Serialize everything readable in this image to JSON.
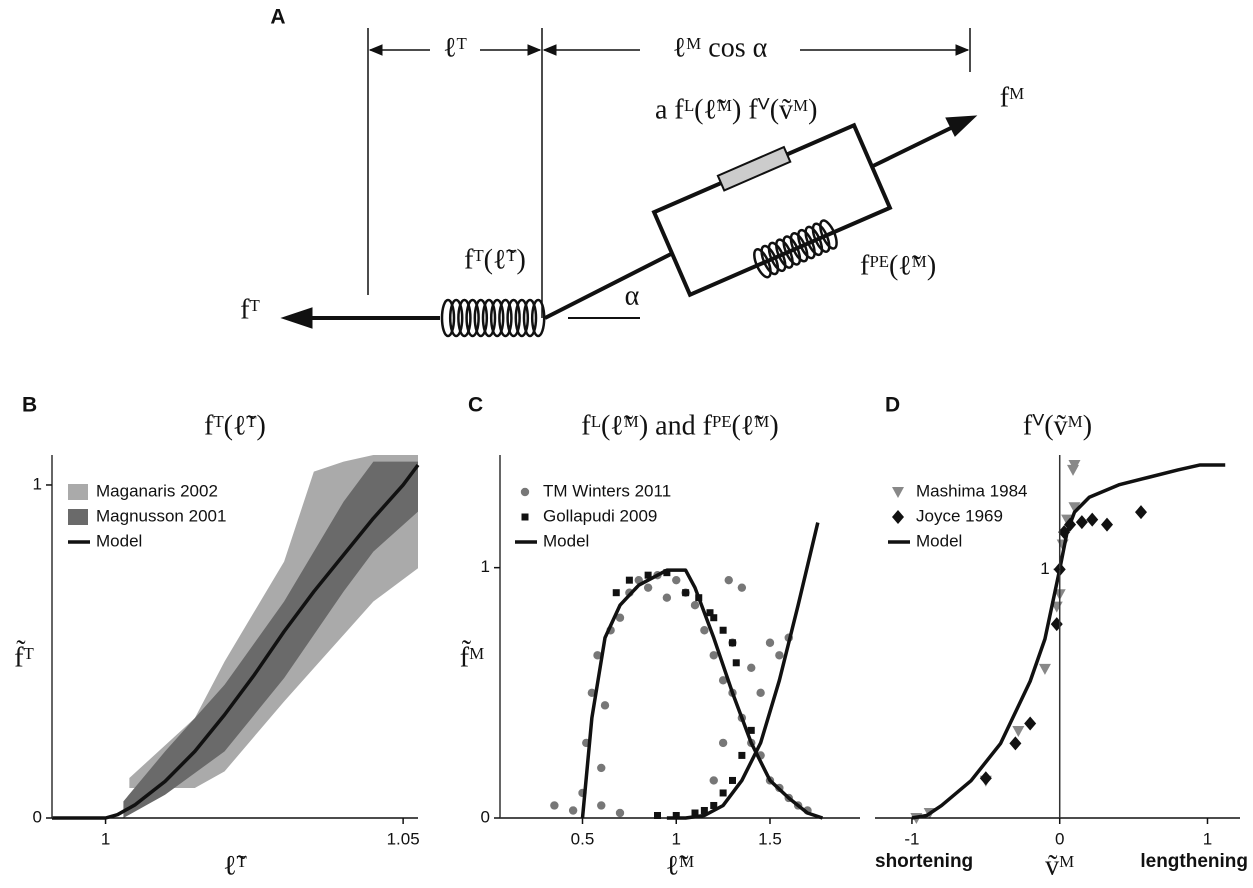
{
  "diagram": {
    "panel_label": "A",
    "tendon_length": "ℓᵀ",
    "fiber_length_projection": "ℓᴹ cos α",
    "muscle_force": "fᴹ",
    "active_force": "a fᴸ(ℓ̃ᴹ) fⱽ(ṽᴹ)",
    "tendon_force_curve": "fᵀ(ℓ̃ᵀ)",
    "passive_force": "fᴾᴱ(ℓ̃ᴹ)",
    "pennation": "α",
    "tendon_force": "fᵀ"
  },
  "chart_data": [
    {
      "type": "line",
      "panel_label": "B",
      "title": "fᵀ(ℓ̃ᵀ)",
      "x_label": "ℓ̃ᵀ",
      "y_label": "f̃ᵀ",
      "xlim": [
        0.991,
        1.0525
      ],
      "ylim": [
        0,
        1.09
      ],
      "xticks": [
        1,
        1.05
      ],
      "yticks": [
        0,
        1
      ],
      "spine": "left",
      "series": [
        {
          "name": "Maganaris 2002",
          "kind": "band",
          "color": "#aaaaaa",
          "x": [
            1.004,
            1.015,
            1.02,
            1.03,
            1.035,
            1.04,
            1.045,
            1.0525
          ],
          "upper": [
            0.12,
            0.3,
            0.47,
            0.77,
            1.04,
            1.07,
            1.09,
            1.09
          ],
          "lower": [
            0.09,
            0.09,
            0.14,
            0.35,
            0.45,
            0.55,
            0.65,
            0.75
          ]
        },
        {
          "name": "Magnusson 2001",
          "kind": "band",
          "color": "#6a6a6a",
          "x": [
            1.003,
            1.01,
            1.02,
            1.03,
            1.04,
            1.045,
            1.0525
          ],
          "upper": [
            0.05,
            0.2,
            0.4,
            0.65,
            0.95,
            1.07,
            1.07
          ],
          "lower": [
            0.0,
            0.07,
            0.2,
            0.42,
            0.68,
            0.8,
            0.92
          ]
        },
        {
          "name": "Model",
          "kind": "line",
          "color": "#111111",
          "x": [
            0.991,
            1.0,
            1.002,
            1.005,
            1.01,
            1.015,
            1.02,
            1.025,
            1.03,
            1.035,
            1.04,
            1.045,
            1.05,
            1.0525
          ],
          "values": [
            0,
            0,
            0.01,
            0.04,
            0.11,
            0.2,
            0.31,
            0.43,
            0.56,
            0.68,
            0.79,
            0.9,
            1.0,
            1.06
          ]
        }
      ]
    },
    {
      "type": "scatter",
      "panel_label": "C",
      "title": "fᴸ(ℓ̃ᴹ) and fᴾᴱ(ℓ̃ᴹ)",
      "x_label": "ℓ̃ᴹ",
      "y_label": "f̃ᴹ",
      "xlim": [
        0.06,
        1.98
      ],
      "ylim": [
        0,
        1.45
      ],
      "xticks": [
        0.5,
        1,
        1.5
      ],
      "yticks": [
        0,
        1
      ],
      "spine": "left",
      "series": [
        {
          "name": "TM Winters 2011",
          "kind": "scatter",
          "marker": "circle",
          "color": "#777777",
          "x": [
            0.5,
            0.52,
            0.55,
            0.58,
            0.6,
            0.62,
            0.65,
            0.7,
            0.75,
            0.8,
            0.85,
            0.9,
            0.95,
            1.0,
            1.05,
            1.1,
            1.15,
            1.2,
            1.25,
            1.3,
            1.35,
            1.4,
            1.45,
            1.5,
            1.55,
            1.6,
            1.65,
            0.35,
            0.45,
            1.4,
            1.5,
            1.55,
            1.6,
            1.3,
            1.45,
            1.2,
            1.25,
            0.6,
            0.7,
            1.7,
            1.28,
            1.35
          ],
          "values": [
            0.1,
            0.3,
            0.5,
            0.65,
            0.2,
            0.45,
            0.75,
            0.8,
            0.9,
            0.95,
            0.92,
            0.97,
            0.88,
            0.95,
            0.9,
            0.85,
            0.75,
            0.65,
            0.55,
            0.5,
            0.4,
            0.3,
            0.25,
            0.15,
            0.12,
            0.08,
            0.05,
            0.05,
            0.03,
            0.6,
            0.7,
            0.65,
            0.72,
            0.7,
            0.5,
            0.15,
            0.3,
            0.05,
            0.02,
            0.03,
            0.95,
            0.92
          ]
        },
        {
          "name": "Gollapudi 2009",
          "kind": "scatter",
          "marker": "square",
          "color": "#111111",
          "x": [
            0.68,
            0.75,
            0.85,
            0.95,
            1.05,
            1.12,
            1.18,
            1.25,
            1.32,
            1.1,
            1.15,
            1.2,
            1.25,
            1.3,
            1.35,
            1.4,
            1.0,
            0.9,
            1.2,
            1.3
          ],
          "values": [
            0.9,
            0.95,
            0.97,
            0.98,
            0.9,
            0.88,
            0.82,
            0.75,
            0.62,
            0.02,
            0.03,
            0.05,
            0.1,
            0.15,
            0.25,
            0.35,
            0.01,
            0.01,
            0.8,
            0.7
          ]
        },
        {
          "name": "Model",
          "kind": "line",
          "color": "#111111",
          "x": [
            0.5,
            0.55,
            0.62,
            0.7,
            0.8,
            0.95,
            1.05,
            1.1,
            1.2,
            1.3,
            1.4,
            1.5,
            1.6,
            1.7,
            1.78,
            null,
            0.95,
            1.05,
            1.15,
            1.25,
            1.35,
            1.45,
            1.55,
            1.65,
            1.755
          ],
          "values": [
            0,
            0.4,
            0.72,
            0.85,
            0.93,
            0.99,
            0.99,
            0.92,
            0.72,
            0.5,
            0.3,
            0.15,
            0.08,
            0.02,
            0,
            null,
            0,
            0,
            0.01,
            0.05,
            0.15,
            0.3,
            0.55,
            0.85,
            1.18
          ]
        }
      ]
    },
    {
      "type": "scatter",
      "panel_label": "D",
      "title": "fⱽ(ṽᴹ)",
      "x_label": "ṽᴹ",
      "x_left_note": "shortening",
      "x_right_note": "lengthening",
      "xlim": [
        -1.25,
        1.22
      ],
      "ylim": [
        0,
        1.46
      ],
      "xticks": [
        -1,
        0,
        1
      ],
      "yticks": [
        1
      ],
      "spine": "zero",
      "series": [
        {
          "name": "Mashima 1984",
          "kind": "scatter",
          "marker": "triangle",
          "color": "#888888",
          "x": [
            -0.97,
            -0.88,
            -0.5,
            -0.28,
            -0.1,
            -0.02,
            0,
            0.02,
            0.05,
            0.1,
            0.09,
            0.1
          ],
          "values": [
            0,
            0.02,
            0.15,
            0.35,
            0.6,
            0.85,
            0.9,
            1.1,
            1.2,
            1.25,
            1.4,
            1.42
          ]
        },
        {
          "name": "Joyce 1969",
          "kind": "scatter",
          "marker": "diamond",
          "color": "#111111",
          "x": [
            -0.3,
            -0.2,
            -0.5,
            -0.02,
            0,
            0.03,
            0.07,
            0.15,
            0.22,
            0.32,
            0.55
          ],
          "values": [
            0.3,
            0.38,
            0.16,
            0.78,
            1.0,
            1.15,
            1.18,
            1.19,
            1.2,
            1.18,
            1.23
          ]
        },
        {
          "name": "Model",
          "kind": "line",
          "color": "#111111",
          "x": [
            -1,
            -0.9,
            -0.8,
            -0.6,
            -0.4,
            -0.2,
            -0.1,
            0,
            0.05,
            0.1,
            0.2,
            0.4,
            0.6,
            0.8,
            0.95,
            1.12
          ],
          "values": [
            0,
            0.01,
            0.05,
            0.15,
            0.3,
            0.55,
            0.72,
            1.0,
            1.15,
            1.23,
            1.29,
            1.34,
            1.37,
            1.4,
            1.42,
            1.42
          ]
        }
      ]
    }
  ]
}
